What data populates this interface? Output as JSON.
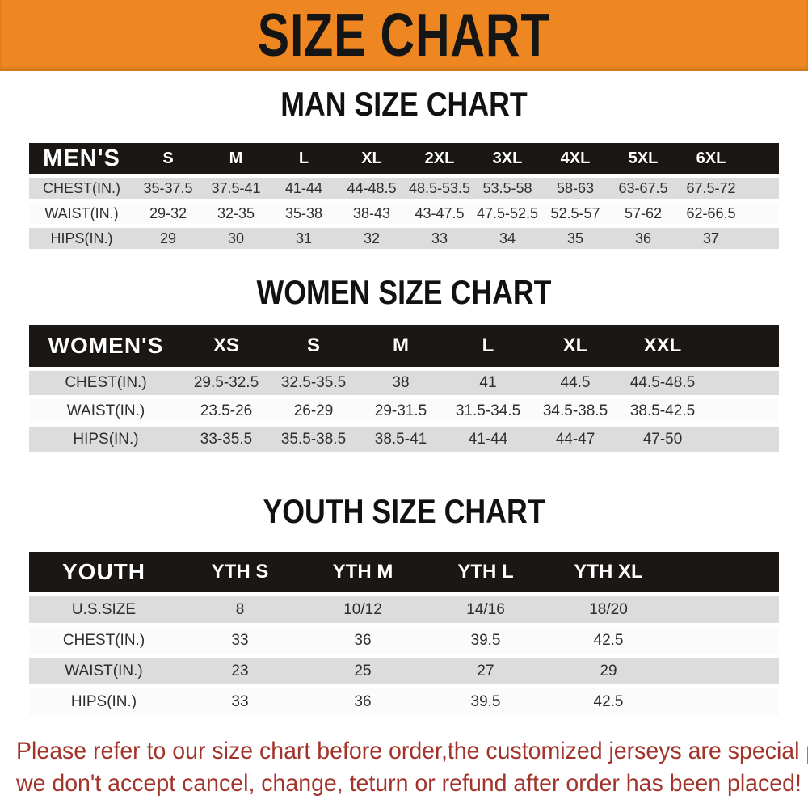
{
  "banner": {
    "title": "SIZE CHART"
  },
  "colors": {
    "banner_bg": "#EE8722",
    "header_bar": "#1A1714",
    "row_gray": "#DCDCDC",
    "row_white": "#FBFBFB",
    "footer_red": "#A3342B"
  },
  "sections": {
    "men": {
      "heading": "MAN SIZE CHART",
      "header_label": "MEN'S",
      "sizes": [
        "S",
        "M",
        "L",
        "XL",
        "2XL",
        "3XL",
        "4XL",
        "5XL",
        "6XL"
      ],
      "rows": [
        {
          "label": "CHEST(IN.)",
          "values": [
            "35-37.5",
            "37.5-41",
            "41-44",
            "44-48.5",
            "48.5-53.5",
            "53.5-58",
            "58-63",
            "63-67.5",
            "67.5-72"
          ]
        },
        {
          "label": "WAIST(IN.)",
          "values": [
            "29-32",
            "32-35",
            "35-38",
            "38-43",
            "43-47.5",
            "47.5-52.5",
            "52.5-57",
            "57-62",
            "62-66.5"
          ]
        },
        {
          "label": "HIPS(IN.)",
          "values": [
            "29",
            "30",
            "31",
            "32",
            "33",
            "34",
            "35",
            "36",
            "37"
          ]
        }
      ]
    },
    "women": {
      "heading": "WOMEN SIZE CHART",
      "header_label": "WOMEN'S",
      "sizes": [
        "XS",
        "S",
        "M",
        "L",
        "XL",
        "XXL"
      ],
      "rows": [
        {
          "label": "CHEST(IN.)",
          "values": [
            "29.5-32.5",
            "32.5-35.5",
            "38",
            "41",
            "44.5",
            "44.5-48.5"
          ]
        },
        {
          "label": "WAIST(IN.)",
          "values": [
            "23.5-26",
            "26-29",
            "29-31.5",
            "31.5-34.5",
            "34.5-38.5",
            "38.5-42.5"
          ]
        },
        {
          "label": "HIPS(IN.)",
          "values": [
            "33-35.5",
            "35.5-38.5",
            "38.5-41",
            "41-44",
            "44-47",
            "47-50"
          ]
        }
      ]
    },
    "youth": {
      "heading": "YOUTH SIZE CHART",
      "header_label": "YOUTH",
      "sizes": [
        "YTH S",
        "YTH M",
        "YTH L",
        "YTH XL"
      ],
      "rows": [
        {
          "label": "U.S.SIZE",
          "values": [
            "8",
            "10/12",
            "14/16",
            "18/20"
          ]
        },
        {
          "label": "CHEST(IN.)",
          "values": [
            "33",
            "36",
            "39.5",
            "42.5"
          ]
        },
        {
          "label": "WAIST(IN.)",
          "values": [
            "23",
            "25",
            "27",
            "29"
          ]
        },
        {
          "label": "HIPS(IN.)",
          "values": [
            "33",
            "36",
            "39.5",
            "42.5"
          ]
        }
      ]
    }
  },
  "footer": {
    "line1": "Please refer to our size chart before order,the customized jerseys are special products,",
    "line2": "we don't accept cancel, change, teturn or refund after order has been placed!"
  }
}
